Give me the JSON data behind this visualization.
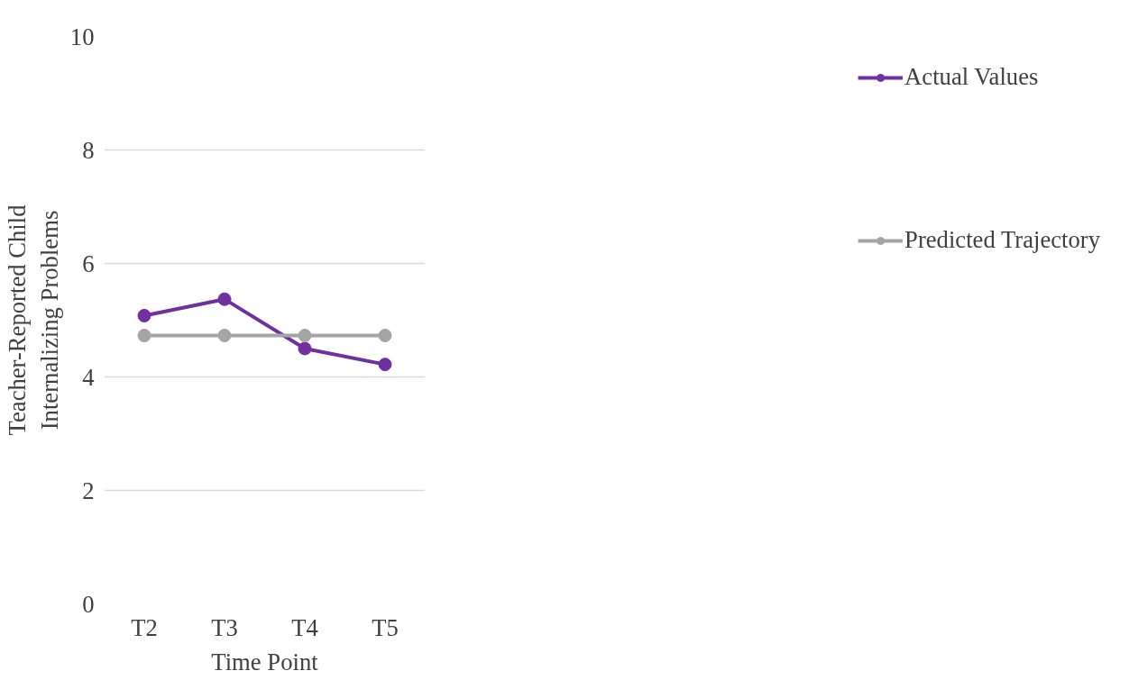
{
  "chart_data": {
    "type": "line",
    "xlabel": "Time Point",
    "ylabel": "Teacher-Reported Child\nInternalizing Problems",
    "categories": [
      "T2",
      "T3",
      "T4",
      "T5"
    ],
    "series": [
      {
        "name": "Actual Values",
        "color": "#7030a0",
        "values": [
          5.08,
          5.37,
          4.5,
          4.22
        ]
      },
      {
        "name": "Predicted Trajectory",
        "color": "#a5a5a5",
        "values": [
          4.73,
          4.73,
          4.73,
          4.73
        ]
      }
    ],
    "ylim": [
      0,
      10
    ],
    "yticks": [
      0,
      2,
      4,
      6,
      8,
      10
    ],
    "grid": "y",
    "legend": "right",
    "marker": "circle",
    "line_style": "solid"
  }
}
